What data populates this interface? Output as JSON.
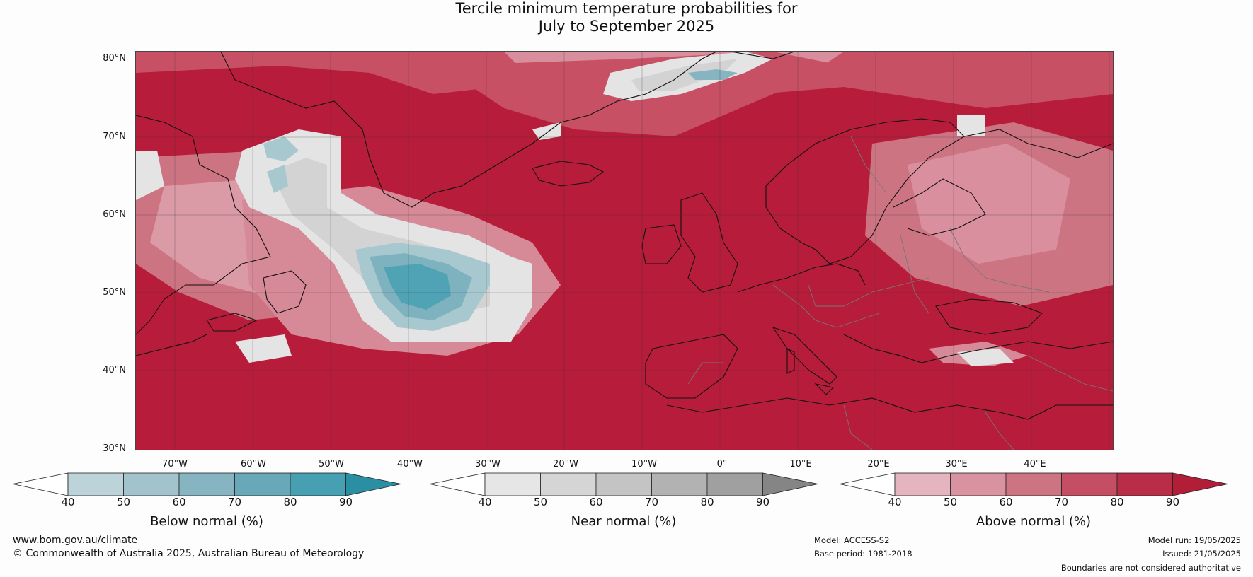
{
  "title": {
    "line1": "Tercile minimum temperature probabilities for",
    "line2": "July to September 2025"
  },
  "map": {
    "lat_labels": [
      "80°N",
      "70°N",
      "60°N",
      "50°N",
      "40°N",
      "30°N"
    ],
    "lon_labels": [
      "70°W",
      "60°W",
      "50°W",
      "40°W",
      "30°W",
      "20°W",
      "10°W",
      "0°",
      "10°E",
      "20°E",
      "30°E",
      "40°E"
    ],
    "base_color": "#b71d3a"
  },
  "colorbars": [
    {
      "title": "Below normal (%)",
      "ticks": [
        "40",
        "50",
        "60",
        "70",
        "80",
        "90"
      ],
      "colors": [
        "#ffffff",
        "#bcd3da",
        "#a2c3cc",
        "#87b4c1",
        "#69a8b8",
        "#47a0b2",
        "#2b8fa3"
      ]
    },
    {
      "title": "Near normal (%)",
      "ticks": [
        "40",
        "50",
        "60",
        "70",
        "80",
        "90"
      ],
      "colors": [
        "#ffffff",
        "#e6e6e6",
        "#d5d5d5",
        "#c4c4c4",
        "#b2b2b2",
        "#a0a0a0",
        "#858585"
      ]
    },
    {
      "title": "Above normal (%)",
      "ticks": [
        "40",
        "50",
        "60",
        "70",
        "80",
        "90"
      ],
      "colors": [
        "#ffffff",
        "#e5b5bf",
        "#d9929f",
        "#cc7482",
        "#c44f64",
        "#b92e47",
        "#b21d38"
      ]
    }
  ],
  "footer": {
    "website": "www.bom.gov.au/climate",
    "copyright": "© Commonwealth of Australia 2025, Australian Bureau of Meteorology",
    "model": "Model: ACCESS-S2",
    "base_period": "Base period: 1981-2018",
    "model_run": "Model run: 19/05/2025",
    "issued": "Issued: 21/05/2025",
    "disclaimer": "Boundaries are not considered authoritative"
  }
}
